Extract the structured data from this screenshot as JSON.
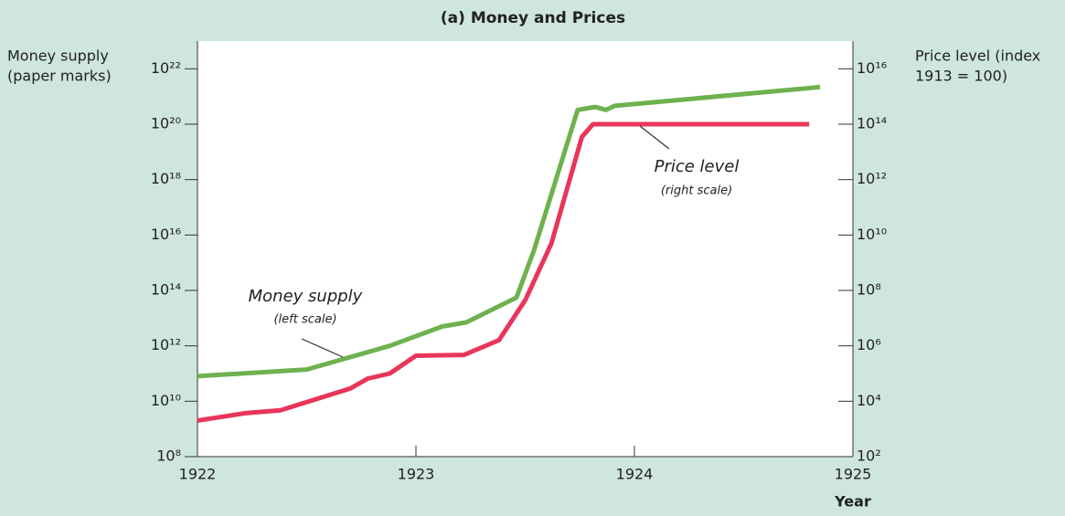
{
  "chart_data": {
    "type": "line",
    "title": "(a) Money and Prices",
    "xlabel": "Year",
    "ylabel": [
      "Money supply",
      "(paper marks)"
    ],
    "y2label": [
      "Price level (index",
      "1913 = 100)"
    ],
    "xlim": [
      1922,
      1925
    ],
    "xticks": [
      1922,
      1923,
      1924,
      1925
    ],
    "yscale": "log",
    "ylim": [
      100000000.0,
      1e+23
    ],
    "yticks": [
      {
        "value": 100000000.0,
        "label": "10⁸"
      },
      {
        "value": 10000000000.0,
        "label": "10¹⁰"
      },
      {
        "value": 1000000000000.0,
        "label": "10¹²"
      },
      {
        "value": 100000000000000.0,
        "label": "10¹⁴"
      },
      {
        "value": 1e+16,
        "label": "10¹⁶"
      },
      {
        "value": 1e+18,
        "label": "10¹⁸"
      },
      {
        "value": 1e+20,
        "label": "10²⁰"
      },
      {
        "value": 1e+22,
        "label": "10²²"
      }
    ],
    "y2lim": [
      100.0,
      1e+17
    ],
    "y2ticks": [
      {
        "value": 100.0,
        "label": "10²"
      },
      {
        "value": 10000.0,
        "label": "10⁴"
      },
      {
        "value": 1000000.0,
        "label": "10⁶"
      },
      {
        "value": 100000000.0,
        "label": "10⁸"
      },
      {
        "value": 10000000000.0,
        "label": "10¹⁰"
      },
      {
        "value": 1000000000000.0,
        "label": "10¹²"
      },
      {
        "value": 100000000000000.0,
        "label": "10¹⁴"
      },
      {
        "value": 1e+16,
        "label": "10¹⁶"
      }
    ],
    "series": [
      {
        "name": "Money supply",
        "note": "(left scale)",
        "color": "#6db24f",
        "axis": "y",
        "x": [
          1922.0,
          1922.5,
          1922.88,
          1923.12,
          1923.23,
          1923.46,
          1923.54,
          1923.74,
          1923.82,
          1923.87,
          1923.91,
          1924.85
        ],
        "values": [
          80000000000.0,
          140000000000.0,
          1000000000000.0,
          5000000000000.0,
          7000000000000.0,
          55000000000000.0,
          2800000000000000.0,
          3.3e+20,
          4.2e+20,
          3.3e+20,
          4.6e+20,
          2.2e+21
        ]
      },
      {
        "name": "Price level",
        "note": "(right scale)",
        "color": "#e8365a",
        "axis": "y2",
        "x": [
          1922.0,
          1922.22,
          1922.38,
          1922.7,
          1922.78,
          1922.88,
          1923.0,
          1923.22,
          1923.38,
          1923.5,
          1923.62,
          1923.76,
          1923.81,
          1924.8
        ],
        "values": [
          2000.0,
          3700.0,
          4700.0,
          29000.0,
          66000.0,
          100000.0,
          440000.0,
          470000.0,
          1600000.0,
          44000000.0,
          5000000000.0,
          35000000000000.0,
          100000000000000.0,
          100000000000000.0
        ]
      }
    ]
  }
}
